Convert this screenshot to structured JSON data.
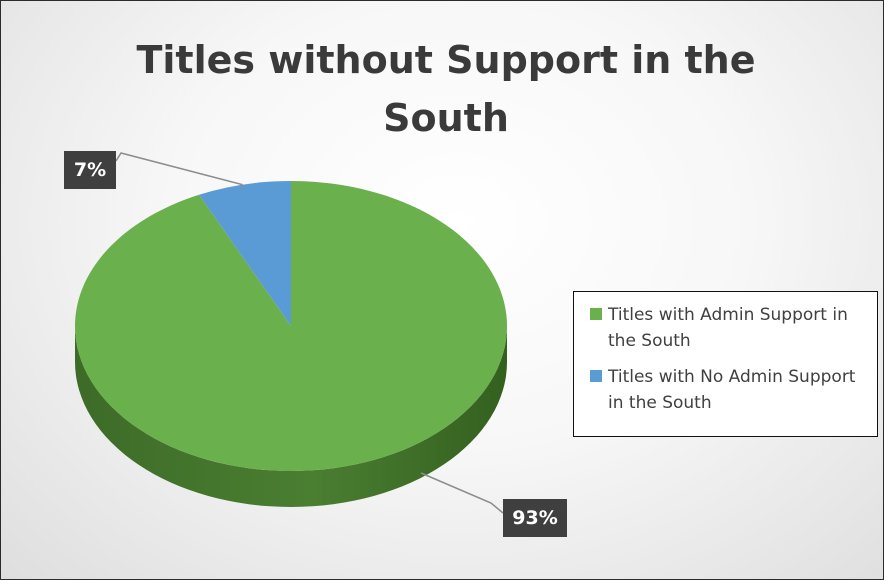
{
  "chart_data": {
    "type": "pie",
    "title": "Titles without Support in the South",
    "categories": [
      "Titles with Admin Support in the South",
      "Titles with No Admin Support in the South"
    ],
    "values": [
      93,
      7
    ],
    "data_labels": [
      "93%",
      "7%"
    ],
    "colors": [
      "#6ab04c",
      "#5b9bd5"
    ],
    "style": "3d",
    "legend_position": "right",
    "start_angle_deg": 0
  }
}
